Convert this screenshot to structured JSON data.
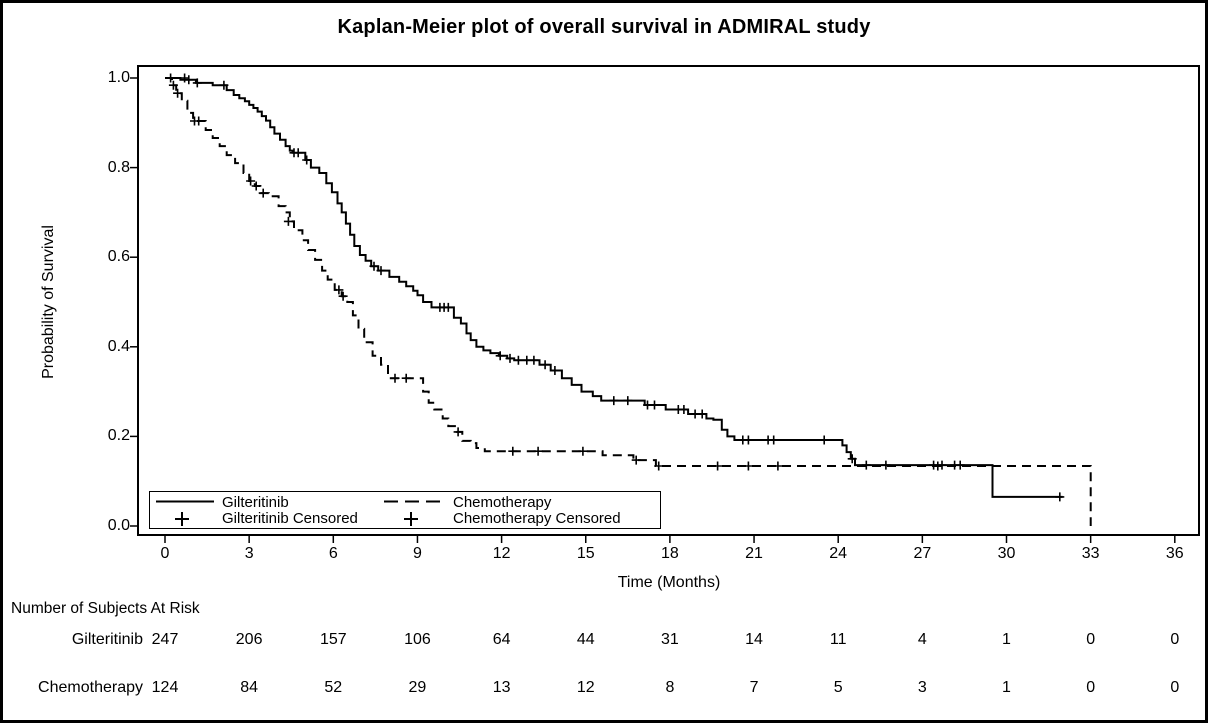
{
  "title": "Kaplan-Meier plot of overall survival in ADMIRAL study",
  "colors": {
    "foreground": "#000000",
    "background": "#ffffff"
  },
  "chart_data": {
    "type": "line",
    "subtype": "kaplan-meier-step",
    "title": "Kaplan-Meier plot of overall survival in ADMIRAL study",
    "xlabel": "Time (Months)",
    "ylabel": "Probability of Survival",
    "xlim": [
      0,
      36
    ],
    "ylim": [
      0.0,
      1.0
    ],
    "grid": false,
    "xticks": [
      0,
      3,
      6,
      9,
      12,
      15,
      18,
      21,
      24,
      27,
      30,
      33,
      36
    ],
    "yticks": [
      {
        "label": "1.0",
        "value": 1.0
      },
      {
        "label": "0.8",
        "value": 0.8
      },
      {
        "label": "0.6",
        "value": 0.6
      },
      {
        "label": "0.4",
        "value": 0.4
      },
      {
        "label": "0.2",
        "value": 0.2
      },
      {
        "label": "0.0",
        "value": 0.0
      }
    ],
    "series": [
      {
        "name": "Gilteritinib",
        "line_style": "solid",
        "color": "#000000",
        "end_time": 32.0,
        "steps": [
          [
            0,
            1.0
          ],
          [
            0.55,
            0.996
          ],
          [
            1.1,
            0.989
          ],
          [
            1.7,
            0.984
          ],
          [
            2.2,
            0.973
          ],
          [
            2.45,
            0.962
          ],
          [
            2.65,
            0.955
          ],
          [
            2.85,
            0.948
          ],
          [
            3.0,
            0.94
          ],
          [
            3.15,
            0.933
          ],
          [
            3.3,
            0.925
          ],
          [
            3.45,
            0.915
          ],
          [
            3.6,
            0.905
          ],
          [
            3.75,
            0.89
          ],
          [
            3.9,
            0.876
          ],
          [
            4.1,
            0.862
          ],
          [
            4.3,
            0.848
          ],
          [
            4.45,
            0.838
          ],
          [
            4.55,
            0.833
          ],
          [
            5.0,
            0.817
          ],
          [
            5.2,
            0.8
          ],
          [
            5.5,
            0.788
          ],
          [
            5.75,
            0.765
          ],
          [
            5.95,
            0.745
          ],
          [
            6.15,
            0.72
          ],
          [
            6.3,
            0.7
          ],
          [
            6.45,
            0.675
          ],
          [
            6.6,
            0.65
          ],
          [
            6.75,
            0.625
          ],
          [
            6.95,
            0.605
          ],
          [
            7.15,
            0.592
          ],
          [
            7.35,
            0.58
          ],
          [
            7.6,
            0.57
          ],
          [
            8.0,
            0.556
          ],
          [
            8.35,
            0.545
          ],
          [
            8.6,
            0.535
          ],
          [
            8.85,
            0.525
          ],
          [
            9.0,
            0.515
          ],
          [
            9.2,
            0.5
          ],
          [
            9.5,
            0.488
          ],
          [
            10.3,
            0.465
          ],
          [
            10.55,
            0.452
          ],
          [
            10.75,
            0.43
          ],
          [
            10.9,
            0.415
          ],
          [
            11.1,
            0.4
          ],
          [
            11.35,
            0.392
          ],
          [
            11.6,
            0.386
          ],
          [
            11.9,
            0.38
          ],
          [
            12.2,
            0.374
          ],
          [
            12.45,
            0.37
          ],
          [
            13.35,
            0.36
          ],
          [
            13.75,
            0.347
          ],
          [
            14.15,
            0.33
          ],
          [
            14.5,
            0.315
          ],
          [
            14.85,
            0.3
          ],
          [
            15.25,
            0.29
          ],
          [
            15.55,
            0.28
          ],
          [
            17.1,
            0.27
          ],
          [
            17.85,
            0.26
          ],
          [
            18.65,
            0.25
          ],
          [
            19.3,
            0.24
          ],
          [
            19.55,
            0.237
          ],
          [
            19.85,
            0.215
          ],
          [
            20.05,
            0.2
          ],
          [
            20.3,
            0.192
          ],
          [
            24.15,
            0.18
          ],
          [
            24.3,
            0.165
          ],
          [
            24.45,
            0.15
          ],
          [
            24.6,
            0.136
          ],
          [
            29.5,
            0.065
          ]
        ],
        "censored": [
          [
            0.2,
            1.0
          ],
          [
            0.7,
            1.0
          ],
          [
            0.85,
            0.996
          ],
          [
            1.15,
            0.989
          ],
          [
            2.1,
            0.984
          ],
          [
            4.6,
            0.833
          ],
          [
            4.75,
            0.833
          ],
          [
            5.05,
            0.817
          ],
          [
            7.45,
            0.58
          ],
          [
            7.7,
            0.57
          ],
          [
            9.8,
            0.488
          ],
          [
            9.95,
            0.488
          ],
          [
            10.1,
            0.488
          ],
          [
            11.95,
            0.38
          ],
          [
            12.3,
            0.374
          ],
          [
            12.6,
            0.37
          ],
          [
            12.9,
            0.37
          ],
          [
            13.15,
            0.37
          ],
          [
            13.55,
            0.36
          ],
          [
            13.9,
            0.347
          ],
          [
            16.0,
            0.28
          ],
          [
            16.5,
            0.28
          ],
          [
            17.2,
            0.27
          ],
          [
            17.45,
            0.27
          ],
          [
            18.3,
            0.26
          ],
          [
            18.5,
            0.26
          ],
          [
            18.9,
            0.25
          ],
          [
            19.15,
            0.25
          ],
          [
            20.6,
            0.192
          ],
          [
            20.8,
            0.192
          ],
          [
            21.5,
            0.192
          ],
          [
            21.7,
            0.192
          ],
          [
            23.5,
            0.192
          ],
          [
            24.5,
            0.15
          ],
          [
            25.0,
            0.136
          ],
          [
            25.7,
            0.136
          ],
          [
            27.4,
            0.136
          ],
          [
            27.7,
            0.136
          ],
          [
            28.15,
            0.136
          ],
          [
            28.35,
            0.136
          ],
          [
            31.9,
            0.065
          ]
        ]
      },
      {
        "name": "Chemotherapy",
        "line_style": "dashed",
        "color": "#000000",
        "end_time": 33.0,
        "steps": [
          [
            0,
            1.0
          ],
          [
            0.25,
            0.984
          ],
          [
            0.4,
            0.966
          ],
          [
            0.6,
            0.949
          ],
          [
            0.8,
            0.922
          ],
          [
            1.0,
            0.904
          ],
          [
            1.45,
            0.884
          ],
          [
            1.7,
            0.866
          ],
          [
            1.95,
            0.848
          ],
          [
            2.2,
            0.828
          ],
          [
            2.5,
            0.81
          ],
          [
            2.8,
            0.788
          ],
          [
            3.0,
            0.77
          ],
          [
            3.2,
            0.759
          ],
          [
            3.4,
            0.743
          ],
          [
            3.7,
            0.736
          ],
          [
            4.05,
            0.714
          ],
          [
            4.3,
            0.7
          ],
          [
            4.45,
            0.68
          ],
          [
            4.6,
            0.66
          ],
          [
            4.9,
            0.638
          ],
          [
            5.1,
            0.616
          ],
          [
            5.35,
            0.594
          ],
          [
            5.6,
            0.57
          ],
          [
            5.8,
            0.55
          ],
          [
            6.05,
            0.527
          ],
          [
            6.3,
            0.513
          ],
          [
            6.5,
            0.5
          ],
          [
            6.7,
            0.47
          ],
          [
            6.9,
            0.44
          ],
          [
            7.1,
            0.41
          ],
          [
            7.4,
            0.38
          ],
          [
            7.7,
            0.36
          ],
          [
            7.95,
            0.33
          ],
          [
            9.2,
            0.3
          ],
          [
            9.4,
            0.275
          ],
          [
            9.6,
            0.26
          ],
          [
            9.9,
            0.24
          ],
          [
            10.1,
            0.223
          ],
          [
            10.4,
            0.21
          ],
          [
            10.6,
            0.19
          ],
          [
            10.9,
            0.185
          ],
          [
            11.1,
            0.174
          ],
          [
            11.4,
            0.167
          ],
          [
            15.6,
            0.158
          ],
          [
            16.7,
            0.147
          ],
          [
            17.5,
            0.134
          ],
          [
            33.0,
            0.0
          ]
        ],
        "censored": [
          [
            0.3,
            0.984
          ],
          [
            0.45,
            0.966
          ],
          [
            1.05,
            0.904
          ],
          [
            1.2,
            0.904
          ],
          [
            3.05,
            0.77
          ],
          [
            3.25,
            0.759
          ],
          [
            3.5,
            0.743
          ],
          [
            4.4,
            0.68
          ],
          [
            6.2,
            0.527
          ],
          [
            6.35,
            0.513
          ],
          [
            8.2,
            0.33
          ],
          [
            8.6,
            0.33
          ],
          [
            10.45,
            0.21
          ],
          [
            12.4,
            0.167
          ],
          [
            13.3,
            0.167
          ],
          [
            14.9,
            0.167
          ],
          [
            16.8,
            0.147
          ],
          [
            17.6,
            0.134
          ],
          [
            19.7,
            0.134
          ],
          [
            20.8,
            0.134
          ],
          [
            21.85,
            0.134
          ],
          [
            27.55,
            0.134
          ]
        ]
      }
    ],
    "legend": {
      "position": "inside-bottom-left",
      "entries": [
        {
          "label": "Gilteritinib",
          "marker": "solid-line"
        },
        {
          "label": "Gilteritinib Censored",
          "marker": "plus"
        },
        {
          "label": "Chemotherapy",
          "marker": "dashed-line"
        },
        {
          "label": "Chemotherapy Censored",
          "marker": "plus"
        }
      ]
    },
    "at_risk": {
      "header": "Number of Subjects At Risk",
      "times": [
        0,
        3,
        6,
        9,
        12,
        15,
        18,
        21,
        24,
        27,
        30,
        33,
        36
      ],
      "rows": [
        {
          "label": "Gilteritinib",
          "counts": [
            "247",
            "206",
            "157",
            "106",
            "64",
            "44",
            "31",
            "14",
            "11",
            "4",
            "1",
            "0",
            "0"
          ]
        },
        {
          "label": "Chemotherapy",
          "counts": [
            "124",
            "84",
            "52",
            "29",
            "13",
            "12",
            "8",
            "7",
            "5",
            "3",
            "1",
            "0",
            "0"
          ]
        }
      ]
    }
  }
}
